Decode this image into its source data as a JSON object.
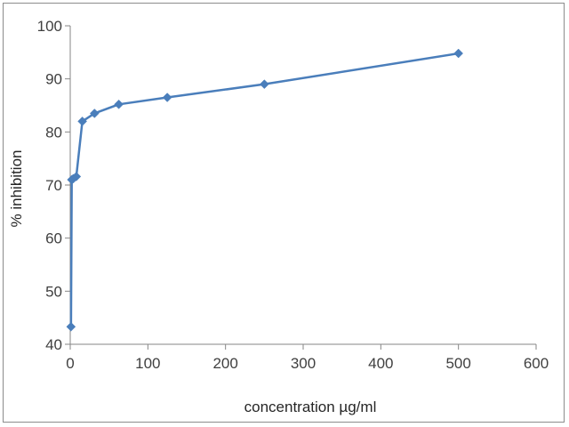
{
  "chart_data": {
    "type": "line",
    "title": "",
    "xlabel": "concentration µg/ml",
    "ylabel": "% inhibition",
    "xlim": [
      0,
      600
    ],
    "ylim": [
      40,
      100
    ],
    "x_ticks": [
      0,
      100,
      200,
      300,
      400,
      500,
      600
    ],
    "y_ticks": [
      40,
      50,
      60,
      70,
      80,
      90,
      100
    ],
    "grid": false,
    "legend": "none",
    "series": [
      {
        "color": "#4a7ebb",
        "marker": "diamond",
        "points": [
          {
            "x": 0.98,
            "y": 43.3
          },
          {
            "x": 1.95,
            "y": 71.0
          },
          {
            "x": 3.9,
            "y": 71.2
          },
          {
            "x": 7.8,
            "y": 71.6
          },
          {
            "x": 15.6,
            "y": 82.0
          },
          {
            "x": 31.25,
            "y": 83.5
          },
          {
            "x": 62.5,
            "y": 85.2
          },
          {
            "x": 125,
            "y": 86.5
          },
          {
            "x": 250,
            "y": 89.0
          },
          {
            "x": 500,
            "y": 94.8
          }
        ]
      }
    ]
  }
}
